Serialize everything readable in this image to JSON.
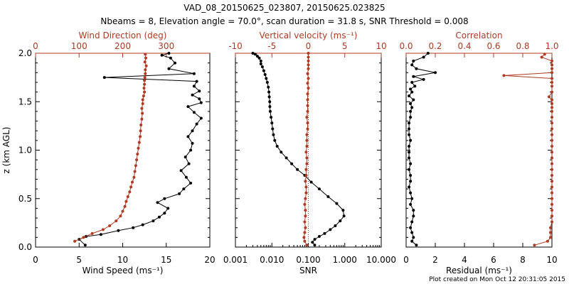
{
  "title_line1": "VAD_08_20150625_023807, 20150625.023825",
  "title_line2": "Nbeams = 8, Elevation angle = 70.0°, scan duration = 31.8 s, SNR Threshold = 0.008",
  "footer": "Plot created on Mon Oct 12 20:31:05 2015",
  "colors": {
    "primary": "#000000",
    "secondary": "#b03a22",
    "dashed_ref": "#b03a22"
  },
  "chart_data": [
    {
      "type": "scatter",
      "title": "",
      "ylabel": "z (km AGL)",
      "ylim": [
        0,
        2
      ],
      "yticks": [
        "0.0",
        "0.5",
        "1.0",
        "1.5",
        "2.0"
      ],
      "grid": false,
      "bottom_axis": {
        "label": "Wind Speed (ms⁻¹)",
        "range": [
          0,
          20
        ],
        "ticks": [
          "0",
          "5",
          "10",
          "15",
          "20"
        ]
      },
      "top_axis": {
        "label": "Wind Direction (deg)",
        "range": [
          0,
          400
        ],
        "ticks": [
          "0",
          "100",
          "200",
          "300"
        ]
      },
      "series": [
        {
          "axis": "bottom",
          "color": "#000000",
          "x": [
            5.7,
            5.0,
            5.8,
            7.5,
            9.5,
            11.2,
            12.3,
            13.5,
            14.2,
            14.8,
            15.2,
            14.0,
            14.8,
            16.5,
            17.0,
            17.8,
            17.3,
            16.7,
            17.6,
            17.2,
            17.8,
            18.0,
            17.5,
            18.0,
            18.5,
            19.0,
            18.2,
            17.5,
            19.0,
            18.8,
            18.0,
            18.8,
            18.2,
            18.5,
            7.9,
            18.2,
            15.3,
            16.0,
            15.5,
            14.5,
            15.3
          ],
          "y": [
            0.02,
            0.08,
            0.11,
            0.13,
            0.17,
            0.2,
            0.23,
            0.27,
            0.31,
            0.35,
            0.4,
            0.46,
            0.5,
            0.55,
            0.6,
            0.66,
            0.72,
            0.79,
            0.86,
            0.93,
            1.0,
            1.07,
            1.14,
            1.2,
            1.27,
            1.33,
            1.39,
            1.45,
            1.49,
            1.53,
            1.57,
            1.61,
            1.66,
            1.71,
            1.75,
            1.79,
            1.84,
            1.9,
            1.95,
            1.98,
            2.0
          ]
        },
        {
          "axis": "top",
          "color": "#b03a22",
          "x": [
            90,
            110,
            130,
            155,
            170,
            185,
            195,
            200,
            205,
            208,
            212,
            216,
            219,
            222,
            226,
            228,
            230,
            232,
            234,
            236,
            238,
            240,
            241,
            242,
            244,
            245,
            244,
            246,
            246,
            248,
            250,
            249,
            250,
            250,
            251,
            252,
            252,
            254,
            251,
            253,
            252
          ],
          "y": [
            0.06,
            0.1,
            0.14,
            0.18,
            0.22,
            0.27,
            0.32,
            0.37,
            0.42,
            0.47,
            0.52,
            0.57,
            0.62,
            0.67,
            0.72,
            0.78,
            0.84,
            0.9,
            0.96,
            1.02,
            1.08,
            1.14,
            1.2,
            1.26,
            1.32,
            1.38,
            1.43,
            1.48,
            1.52,
            1.56,
            1.6,
            1.64,
            1.68,
            1.72,
            1.75,
            1.79,
            1.83,
            1.87,
            1.91,
            1.95,
            1.99
          ]
        }
      ]
    },
    {
      "type": "scatter",
      "title": "",
      "ylim": [
        0,
        2
      ],
      "grid": false,
      "bottom_axis": {
        "label": "SNR",
        "scale": "log",
        "range": [
          0.001,
          10
        ],
        "ticks": [
          "0.001",
          "0.010",
          "0.100",
          "1.000",
          "10.000"
        ]
      },
      "top_axis": {
        "label": "Vertical velocity (ms⁻¹)",
        "range": [
          -10,
          10
        ],
        "ticks": [
          "-10",
          "-5",
          "0",
          "5",
          "10"
        ]
      },
      "reference_line": {
        "axis": "top",
        "value": 0,
        "style": "dotted",
        "color": "#b03a22"
      },
      "series": [
        {
          "axis": "bottom",
          "color": "#000000",
          "x": [
            0.15,
            0.13,
            0.15,
            0.2,
            0.28,
            0.4,
            0.55,
            0.75,
            0.95,
            0.9,
            0.6,
            0.35,
            0.2,
            0.12,
            0.08,
            0.05,
            0.035,
            0.025,
            0.018,
            0.014,
            0.012,
            0.011,
            0.0105,
            0.01,
            0.0095,
            0.009,
            0.0088,
            0.0087,
            0.0085,
            0.0083,
            0.008,
            0.0075,
            0.007,
            0.0065,
            0.006,
            0.0055,
            0.005,
            0.005,
            0.0045,
            0.004,
            0.0035,
            0.003
          ],
          "y": [
            0.02,
            0.05,
            0.08,
            0.11,
            0.14,
            0.18,
            0.22,
            0.27,
            0.32,
            0.38,
            0.45,
            0.52,
            0.6,
            0.67,
            0.74,
            0.8,
            0.86,
            0.92,
            0.98,
            1.04,
            1.1,
            1.16,
            1.22,
            1.28,
            1.34,
            1.4,
            1.45,
            1.5,
            1.55,
            1.6,
            1.65,
            1.7,
            1.74,
            1.78,
            1.82,
            1.86,
            1.89,
            1.92,
            1.95,
            1.97,
            1.99,
            2.0
          ]
        },
        {
          "axis": "top",
          "color": "#b03a22",
          "x": [
            -0.2,
            -0.5,
            -0.6,
            -0.5,
            -0.4,
            -0.5,
            -0.4,
            -0.4,
            -0.5,
            -0.4,
            -0.3,
            -0.3,
            -0.4,
            -0.3,
            -0.3,
            -0.2,
            -0.2,
            -0.3,
            -0.2,
            -0.2,
            -0.2,
            -0.1,
            -0.1,
            -0.2,
            -0.1,
            -0.1,
            -0.1,
            -0.1,
            0.0,
            -0.1,
            0.0,
            -0.1,
            0.0,
            0.0,
            0.0,
            0.0,
            0.0
          ],
          "y": [
            0.02,
            0.06,
            0.1,
            0.15,
            0.2,
            0.26,
            0.32,
            0.38,
            0.44,
            0.5,
            0.56,
            0.62,
            0.68,
            0.74,
            0.8,
            0.86,
            0.92,
            0.98,
            1.04,
            1.1,
            1.16,
            1.22,
            1.28,
            1.34,
            1.4,
            1.46,
            1.52,
            1.58,
            1.64,
            1.69,
            1.74,
            1.79,
            1.84,
            1.88,
            1.92,
            1.96,
            2.0
          ]
        }
      ]
    },
    {
      "type": "scatter",
      "title": "",
      "ylim": [
        0,
        2
      ],
      "grid": false,
      "bottom_axis": {
        "label": "Residual (ms⁻¹)",
        "range": [
          0,
          10
        ],
        "ticks": [
          "0",
          "2",
          "4",
          "6",
          "8",
          "10"
        ]
      },
      "top_axis": {
        "label": "Correlation",
        "range": [
          0,
          1
        ],
        "ticks": [
          "0.0",
          "0.2",
          "0.4",
          "0.6",
          "0.8",
          "1.0"
        ]
      },
      "series": [
        {
          "axis": "bottom",
          "color": "#000000",
          "x": [
            0.7,
            0.4,
            0.5,
            0.4,
            0.3,
            0.4,
            0.5,
            0.5,
            0.3,
            0.4,
            0.3,
            0.2,
            0.3,
            0.3,
            0.2,
            0.3,
            0.2,
            0.2,
            0.2,
            0.3,
            0.2,
            0.2,
            0.2,
            0.3,
            0.3,
            0.4,
            0.3,
            0.5,
            0.2,
            0.4,
            0.3,
            0.6,
            0.4,
            1.2,
            0.5,
            2.0,
            0.7,
            0.4,
            0.5,
            1.2,
            1.5
          ],
          "y": [
            0.02,
            0.06,
            0.1,
            0.15,
            0.2,
            0.26,
            0.32,
            0.38,
            0.44,
            0.5,
            0.56,
            0.62,
            0.68,
            0.74,
            0.8,
            0.86,
            0.92,
            0.98,
            1.04,
            1.1,
            1.16,
            1.22,
            1.28,
            1.34,
            1.4,
            1.44,
            1.48,
            1.52,
            1.56,
            1.6,
            1.63,
            1.66,
            1.7,
            1.73,
            1.76,
            1.8,
            1.84,
            1.88,
            1.92,
            1.96,
            2.0
          ]
        },
        {
          "axis": "top",
          "color": "#b03a22",
          "x": [
            0.88,
            0.97,
            0.99,
            0.99,
            0.99,
            1.0,
            1.0,
            1.0,
            1.0,
            1.0,
            1.0,
            1.0,
            1.0,
            1.0,
            1.0,
            1.0,
            1.0,
            1.0,
            1.0,
            1.0,
            1.0,
            1.0,
            1.0,
            1.0,
            1.0,
            1.0,
            1.0,
            1.0,
            0.98,
            1.0,
            1.0,
            1.0,
            1.0,
            0.67,
            1.0,
            1.0,
            1.0,
            1.0,
            0.93,
            0.95
          ],
          "y": [
            0.02,
            0.06,
            0.1,
            0.15,
            0.2,
            0.26,
            0.32,
            0.38,
            0.44,
            0.5,
            0.56,
            0.62,
            0.68,
            0.74,
            0.8,
            0.86,
            0.92,
            0.98,
            1.04,
            1.1,
            1.16,
            1.22,
            1.28,
            1.34,
            1.4,
            1.44,
            1.48,
            1.52,
            1.55,
            1.6,
            1.66,
            1.7,
            1.74,
            1.77,
            1.8,
            1.84,
            1.88,
            1.92,
            1.96,
            1.99
          ]
        }
      ]
    }
  ]
}
